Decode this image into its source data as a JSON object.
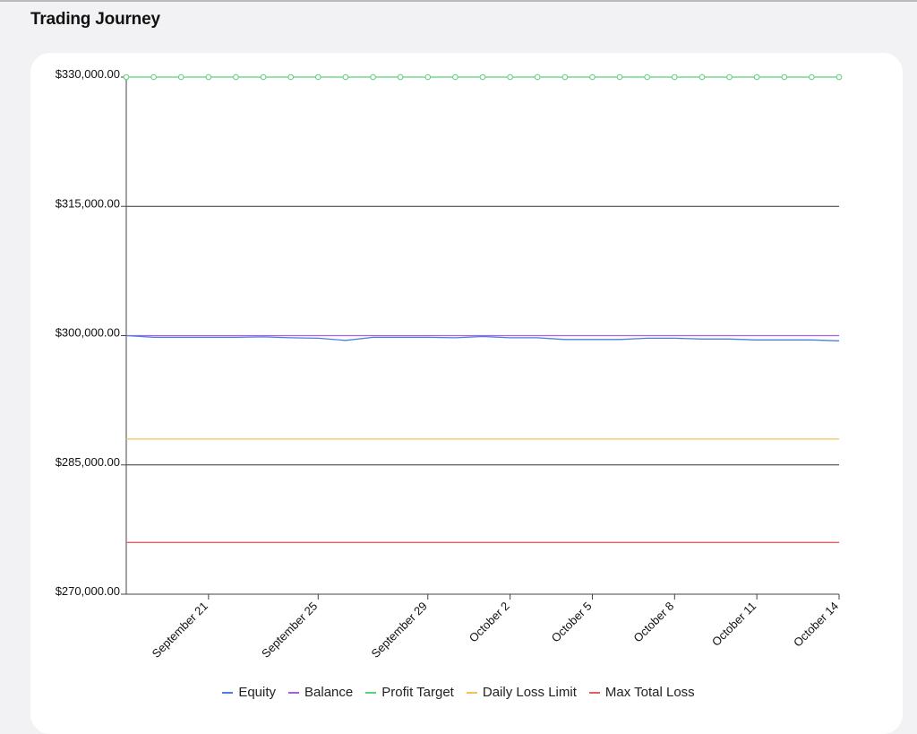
{
  "page": {
    "title": "Trading Journey"
  },
  "chart_data": {
    "type": "line",
    "title": "",
    "xlabel": "",
    "ylabel": "",
    "ylim": [
      270000,
      330000
    ],
    "y_ticks": [
      330000,
      315000,
      300000,
      285000,
      270000
    ],
    "y_tick_labels": [
      "$330,000.00",
      "$315,000.00",
      "$300,000.00",
      "$285,000.00",
      "$270,000.00"
    ],
    "grid": {
      "horizontal_lines_at": [
        315000,
        285000
      ]
    },
    "x": [
      "2023-09-18",
      "2023-09-19",
      "2023-09-20",
      "2023-09-21",
      "2023-09-22",
      "2023-09-23",
      "2023-09-24",
      "2023-09-25",
      "2023-09-26",
      "2023-09-27",
      "2023-09-28",
      "2023-09-29",
      "2023-09-30",
      "2023-10-01",
      "2023-10-02",
      "2023-10-03",
      "2023-10-04",
      "2023-10-05",
      "2023-10-06",
      "2023-10-07",
      "2023-10-08",
      "2023-10-09",
      "2023-10-10",
      "2023-10-11",
      "2023-10-12",
      "2023-10-13",
      "2023-10-14"
    ],
    "x_ticks": [
      {
        "date": "2023-09-21",
        "label": "September 21"
      },
      {
        "date": "2023-09-25",
        "label": "September 25"
      },
      {
        "date": "2023-09-29",
        "label": "September 29"
      },
      {
        "date": "2023-10-02",
        "label": "October 2"
      },
      {
        "date": "2023-10-05",
        "label": "October 5"
      },
      {
        "date": "2023-10-08",
        "label": "October 8"
      },
      {
        "date": "2023-10-11",
        "label": "October 11"
      },
      {
        "date": "2023-10-14",
        "label": "October 14"
      }
    ],
    "legend_position": "bottom",
    "series": [
      {
        "name": "Equity",
        "color": "#4a7fe0",
        "values": [
          300000,
          299800,
          299800,
          299800,
          299800,
          299850,
          299750,
          299700,
          299450,
          299800,
          299800,
          299800,
          299750,
          299900,
          299750,
          299750,
          299550,
          299550,
          299550,
          299700,
          299700,
          299600,
          299600,
          299500,
          299500,
          299500,
          299400
        ]
      },
      {
        "name": "Balance",
        "color": "#a35fe0",
        "values": [
          300000,
          300000,
          300000,
          300000,
          300000,
          300000,
          300000,
          300000,
          300000,
          300000,
          300000,
          300000,
          300000,
          300000,
          300000,
          300000,
          300000,
          300000,
          300000,
          300000,
          300000,
          300000,
          300000,
          300000,
          300000,
          300000,
          300000
        ]
      },
      {
        "name": "Profit Target",
        "color": "#5bd17a",
        "markers": true,
        "values": [
          330000,
          330000,
          330000,
          330000,
          330000,
          330000,
          330000,
          330000,
          330000,
          330000,
          330000,
          330000,
          330000,
          330000,
          330000,
          330000,
          330000,
          330000,
          330000,
          330000,
          330000,
          330000,
          330000,
          330000,
          330000,
          330000,
          330000
        ]
      },
      {
        "name": "Daily Loss Limit",
        "color": "#f2c25a",
        "values": [
          288000,
          288000,
          288000,
          288000,
          288000,
          288000,
          288000,
          288000,
          288000,
          288000,
          288000,
          288000,
          288000,
          288000,
          288000,
          288000,
          288000,
          288000,
          288000,
          288000,
          288000,
          288000,
          288000,
          288000,
          288000,
          288000,
          288000
        ]
      },
      {
        "name": "Max Total Loss",
        "color": "#e06060",
        "values": [
          276000,
          276000,
          276000,
          276000,
          276000,
          276000,
          276000,
          276000,
          276000,
          276000,
          276000,
          276000,
          276000,
          276000,
          276000,
          276000,
          276000,
          276000,
          276000,
          276000,
          276000,
          276000,
          276000,
          276000,
          276000,
          276000,
          276000
        ]
      }
    ]
  }
}
